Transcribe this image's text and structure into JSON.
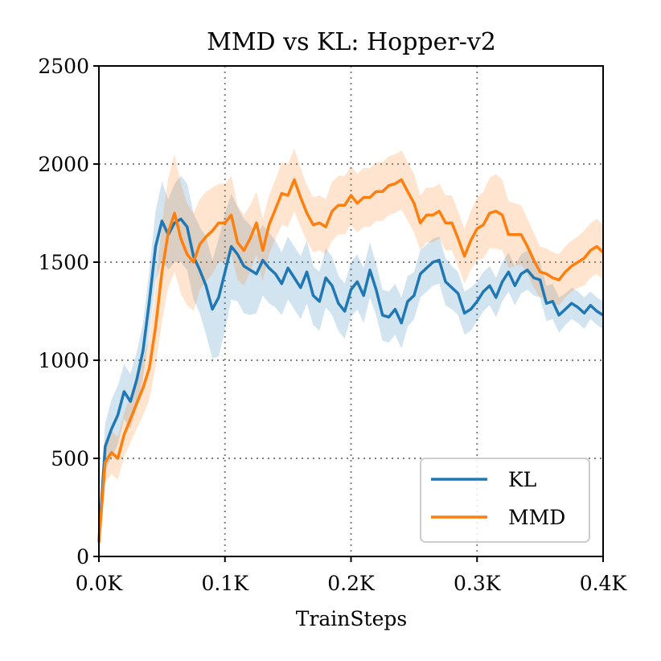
{
  "chart_data": {
    "type": "line",
    "title": "MMD vs KL: Hopper-v2",
    "xlabel": "TrainSteps",
    "ylabel": "",
    "xlim": [
      0,
      0.4
    ],
    "ylim": [
      0,
      2500
    ],
    "x_ticks": [
      0,
      0.1,
      0.2,
      0.3,
      0.4
    ],
    "x_tick_labels": [
      "0.0K",
      "0.1K",
      "0.2K",
      "0.3K",
      "0.4K"
    ],
    "y_ticks": [
      0,
      500,
      1000,
      1500,
      2000,
      2500
    ],
    "y_tick_labels": [
      "0",
      "500",
      "1000",
      "1500",
      "2000",
      "2500"
    ],
    "grid": true,
    "legend_position": "lower-right",
    "series": [
      {
        "name": "KL",
        "color": "#1f77b4",
        "shade_color": "#1f77b4",
        "x": [
          0,
          0.005,
          0.01,
          0.015,
          0.02,
          0.025,
          0.03,
          0.035,
          0.04,
          0.045,
          0.05,
          0.055,
          0.06,
          0.065,
          0.07,
          0.075,
          0.08,
          0.085,
          0.09,
          0.095,
          0.1,
          0.105,
          0.11,
          0.115,
          0.12,
          0.125,
          0.13,
          0.135,
          0.14,
          0.145,
          0.15,
          0.155,
          0.16,
          0.165,
          0.17,
          0.175,
          0.18,
          0.185,
          0.19,
          0.195,
          0.2,
          0.205,
          0.21,
          0.215,
          0.22,
          0.225,
          0.23,
          0.235,
          0.24,
          0.245,
          0.25,
          0.255,
          0.26,
          0.265,
          0.27,
          0.275,
          0.28,
          0.285,
          0.29,
          0.295,
          0.3,
          0.305,
          0.31,
          0.315,
          0.32,
          0.325,
          0.33,
          0.335,
          0.34,
          0.345,
          0.35,
          0.355,
          0.36,
          0.365,
          0.37,
          0.375,
          0.38,
          0.385,
          0.39,
          0.395,
          0.4
        ],
        "y": [
          80,
          560,
          650,
          720,
          840,
          790,
          900,
          1050,
          1300,
          1580,
          1710,
          1640,
          1700,
          1720,
          1680,
          1530,
          1460,
          1380,
          1260,
          1320,
          1450,
          1580,
          1540,
          1480,
          1460,
          1440,
          1510,
          1470,
          1440,
          1390,
          1470,
          1420,
          1370,
          1450,
          1330,
          1300,
          1420,
          1380,
          1290,
          1250,
          1360,
          1400,
          1330,
          1460,
          1360,
          1230,
          1220,
          1260,
          1190,
          1300,
          1330,
          1440,
          1470,
          1500,
          1510,
          1400,
          1370,
          1340,
          1240,
          1260,
          1300,
          1350,
          1380,
          1320,
          1400,
          1450,
          1380,
          1440,
          1460,
          1420,
          1410,
          1290,
          1300,
          1230,
          1260,
          1290,
          1270,
          1240,
          1280,
          1250,
          1230
        ],
        "band": [
          60,
          120,
          150,
          150,
          140,
          140,
          140,
          140,
          160,
          180,
          200,
          180,
          200,
          220,
          220,
          220,
          220,
          250,
          250,
          300,
          300,
          270,
          240,
          240,
          230,
          200,
          180,
          180,
          170,
          160,
          160,
          160,
          160,
          160,
          150,
          150,
          150,
          150,
          140,
          140,
          140,
          140,
          140,
          140,
          130,
          130,
          130,
          130,
          130,
          130,
          120,
          120,
          120,
          120,
          120,
          120,
          110,
          110,
          110,
          110,
          100,
          100,
          100,
          100,
          100,
          100,
          100,
          100,
          100,
          90,
          90,
          90,
          90,
          90,
          80,
          80,
          80,
          80,
          70,
          70,
          70
        ]
      },
      {
        "name": "MMD",
        "color": "#ff7f0e",
        "shade_color": "#ff7f0e",
        "x": [
          0,
          0.005,
          0.01,
          0.015,
          0.02,
          0.025,
          0.03,
          0.035,
          0.04,
          0.045,
          0.05,
          0.055,
          0.06,
          0.065,
          0.07,
          0.075,
          0.08,
          0.085,
          0.09,
          0.095,
          0.1,
          0.105,
          0.11,
          0.115,
          0.12,
          0.125,
          0.13,
          0.135,
          0.14,
          0.145,
          0.15,
          0.155,
          0.16,
          0.165,
          0.17,
          0.175,
          0.18,
          0.185,
          0.19,
          0.195,
          0.2,
          0.205,
          0.21,
          0.215,
          0.22,
          0.225,
          0.23,
          0.235,
          0.24,
          0.245,
          0.25,
          0.255,
          0.26,
          0.265,
          0.27,
          0.275,
          0.28,
          0.285,
          0.29,
          0.295,
          0.3,
          0.305,
          0.31,
          0.315,
          0.32,
          0.325,
          0.33,
          0.335,
          0.34,
          0.345,
          0.35,
          0.355,
          0.36,
          0.365,
          0.37,
          0.375,
          0.38,
          0.385,
          0.39,
          0.395,
          0.4
        ],
        "y": [
          70,
          480,
          530,
          500,
          620,
          700,
          780,
          860,
          960,
          1170,
          1450,
          1650,
          1750,
          1620,
          1540,
          1500,
          1590,
          1630,
          1660,
          1700,
          1700,
          1740,
          1600,
          1560,
          1620,
          1700,
          1560,
          1690,
          1770,
          1850,
          1840,
          1920,
          1830,
          1750,
          1690,
          1700,
          1680,
          1760,
          1790,
          1790,
          1840,
          1800,
          1830,
          1830,
          1860,
          1860,
          1890,
          1900,
          1920,
          1860,
          1800,
          1700,
          1740,
          1740,
          1760,
          1700,
          1700,
          1620,
          1530,
          1610,
          1670,
          1690,
          1750,
          1760,
          1740,
          1640,
          1640,
          1640,
          1580,
          1510,
          1450,
          1440,
          1420,
          1410,
          1450,
          1480,
          1500,
          1520,
          1560,
          1580,
          1550
        ],
        "band": [
          60,
          100,
          110,
          110,
          110,
          120,
          130,
          140,
          160,
          200,
          250,
          280,
          300,
          280,
          260,
          250,
          230,
          230,
          220,
          200,
          200,
          200,
          190,
          180,
          170,
          160,
          160,
          150,
          150,
          160,
          160,
          160,
          150,
          140,
          140,
          140,
          140,
          150,
          150,
          150,
          150,
          150,
          150,
          150,
          150,
          150,
          150,
          150,
          150,
          150,
          150,
          140,
          140,
          140,
          140,
          140,
          140,
          140,
          140,
          150,
          160,
          170,
          180,
          190,
          180,
          170,
          160,
          150,
          140,
          140,
          130,
          130,
          130,
          130,
          130,
          130,
          130,
          140,
          140,
          140,
          140
        ]
      }
    ]
  }
}
